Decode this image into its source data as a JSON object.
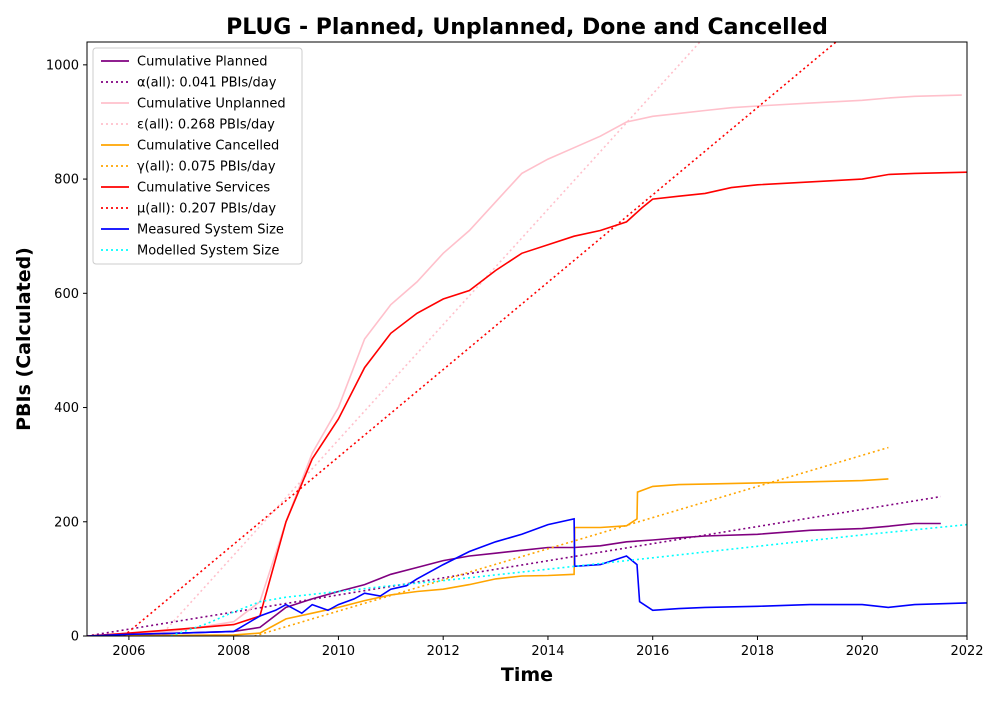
{
  "chart_data": {
    "type": "line",
    "title": "PLUG - Planned, Unplanned, Done  and Cancelled",
    "xlabel": "Time",
    "ylabel": "PBIs (Calculated)",
    "xlim": [
      2005.2,
      2022.0
    ],
    "ylim": [
      0,
      1040
    ],
    "x_ticks": [
      2006,
      2008,
      2010,
      2012,
      2014,
      2016,
      2018,
      2020,
      2022
    ],
    "x_tick_labels": [
      "2006",
      "2008",
      "2010",
      "2012",
      "2014",
      "2016",
      "2018",
      "2020",
      "2022"
    ],
    "y_ticks": [
      0,
      200,
      400,
      600,
      800,
      1000
    ],
    "y_tick_labels": [
      "0",
      "200",
      "400",
      "600",
      "800",
      "1000"
    ],
    "grid": false,
    "legend_position": "top-left",
    "series": [
      {
        "name": "Cumulative Planned",
        "color": "#800080",
        "style": "solid",
        "x": [
          2005.2,
          2006.0,
          2007.0,
          2008.0,
          2008.5,
          2009.0,
          2009.5,
          2010.0,
          2010.5,
          2011.0,
          2011.5,
          2012.0,
          2012.5,
          2013.0,
          2013.5,
          2014.0,
          2014.5,
          2015.0,
          2015.5,
          2016.0,
          2016.5,
          2017.0,
          2018.0,
          2019.0,
          2020.0,
          2020.5,
          2021.0,
          2021.5
        ],
        "y": [
          0,
          2,
          5,
          8,
          15,
          50,
          65,
          78,
          90,
          108,
          120,
          132,
          140,
          145,
          150,
          155,
          155,
          158,
          165,
          168,
          172,
          175,
          178,
          185,
          188,
          192,
          197,
          197
        ]
      },
      {
        "name": "α(all): 0.041 PBIs/day",
        "color": "#800080",
        "style": "dotted",
        "x": [
          2005.2,
          2021.5
        ],
        "y": [
          0,
          244
        ]
      },
      {
        "name": "Cumulative Unplanned",
        "color": "#ffc0cb",
        "style": "solid",
        "x": [
          2005.2,
          2006.0,
          2007.0,
          2008.0,
          2008.5,
          2009.0,
          2009.5,
          2010.0,
          2010.5,
          2011.0,
          2011.5,
          2012.0,
          2012.5,
          2013.0,
          2013.5,
          2014.0,
          2014.5,
          2015.0,
          2015.5,
          2016.0,
          2016.5,
          2017.0,
          2017.5,
          2018.0,
          2019.0,
          2020.0,
          2020.5,
          2021.0,
          2021.9
        ],
        "y": [
          0,
          3,
          10,
          25,
          60,
          200,
          320,
          400,
          520,
          580,
          620,
          670,
          710,
          760,
          810,
          835,
          855,
          875,
          900,
          910,
          915,
          920,
          925,
          928,
          933,
          938,
          942,
          945,
          947
        ]
      },
      {
        "name": "ε(all): 0.268 PBIs/day",
        "color": "#ffc0cb",
        "style": "dotted",
        "x": [
          2006.6,
          2016.9
        ],
        "y": [
          0,
          1040
        ]
      },
      {
        "name": "Cumulative Cancelled",
        "color": "#ffa500",
        "style": "solid",
        "x": [
          2005.2,
          2008.0,
          2008.5,
          2009.0,
          2009.5,
          2010.0,
          2010.5,
          2011.0,
          2011.5,
          2012.0,
          2012.5,
          2013.0,
          2013.5,
          2014.0,
          2014.5,
          2014.51,
          2015.0,
          2015.5,
          2015.7,
          2015.71,
          2016.0,
          2016.5,
          2017.0,
          2018.0,
          2019.0,
          2020.0,
          2020.5
        ],
        "y": [
          0,
          2,
          5,
          30,
          40,
          50,
          62,
          72,
          78,
          82,
          90,
          100,
          105,
          106,
          108,
          190,
          190,
          193,
          205,
          252,
          262,
          265,
          266,
          268,
          270,
          272,
          275
        ]
      },
      {
        "name": "γ(all): 0.075 PBIs/day",
        "color": "#ffa500",
        "style": "dotted",
        "x": [
          2008.4,
          2020.5
        ],
        "y": [
          0,
          330
        ]
      },
      {
        "name": "Cumulative Services",
        "color": "#ff0000",
        "style": "solid",
        "x": [
          2005.2,
          2006.0,
          2007.0,
          2008.0,
          2008.5,
          2009.0,
          2009.5,
          2010.0,
          2010.5,
          2011.0,
          2011.5,
          2012.0,
          2012.5,
          2013.0,
          2013.5,
          2014.0,
          2014.5,
          2015.0,
          2015.5,
          2015.8,
          2016.0,
          2016.5,
          2017.0,
          2017.5,
          2018.0,
          2019.0,
          2020.0,
          2020.5,
          2021.0,
          2022.0
        ],
        "y": [
          0,
          5,
          12,
          20,
          35,
          200,
          310,
          380,
          470,
          530,
          565,
          590,
          605,
          640,
          670,
          685,
          700,
          710,
          725,
          750,
          765,
          770,
          775,
          785,
          790,
          795,
          800,
          808,
          810,
          812
        ]
      },
      {
        "name": "μ(all): 0.207 PBIs/day",
        "color": "#ff0000",
        "style": "dotted",
        "x": [
          2005.9,
          2019.5
        ],
        "y": [
          0,
          1040
        ]
      },
      {
        "name": "Measured System Size",
        "color": "#0000ff",
        "style": "solid",
        "x": [
          2005.2,
          2006.0,
          2007.0,
          2008.0,
          2008.5,
          2008.8,
          2009.0,
          2009.3,
          2009.5,
          2009.8,
          2010.0,
          2010.3,
          2010.5,
          2010.8,
          2011.0,
          2011.3,
          2011.5,
          2012.0,
          2012.5,
          2013.0,
          2013.5,
          2014.0,
          2014.5,
          2014.51,
          2015.0,
          2015.5,
          2015.7,
          2015.75,
          2016.0,
          2016.5,
          2017.0,
          2018.0,
          2019.0,
          2020.0,
          2020.5,
          2021.0,
          2022.0
        ],
        "y": [
          0,
          3,
          5,
          8,
          35,
          45,
          55,
          40,
          55,
          45,
          55,
          65,
          75,
          70,
          82,
          88,
          100,
          125,
          148,
          165,
          178,
          195,
          205,
          122,
          125,
          140,
          125,
          60,
          45,
          48,
          50,
          52,
          55,
          55,
          50,
          55,
          58
        ]
      },
      {
        "name": "Modelled System Size",
        "color": "#00ffff",
        "style": "dotted",
        "x": [
          2006.8,
          2007.5,
          2008.0,
          2008.5,
          2009.0,
          2010.0,
          2011.0,
          2012.0,
          2013.0,
          2014.0,
          2015.0,
          2016.0,
          2017.0,
          2018.0,
          2019.0,
          2020.0,
          2021.0,
          2022.0
        ],
        "y": [
          0,
          22,
          42,
          60,
          68,
          78,
          88,
          97,
          107,
          117,
          127,
          137,
          147,
          157,
          167,
          177,
          186,
          195
        ]
      }
    ]
  }
}
